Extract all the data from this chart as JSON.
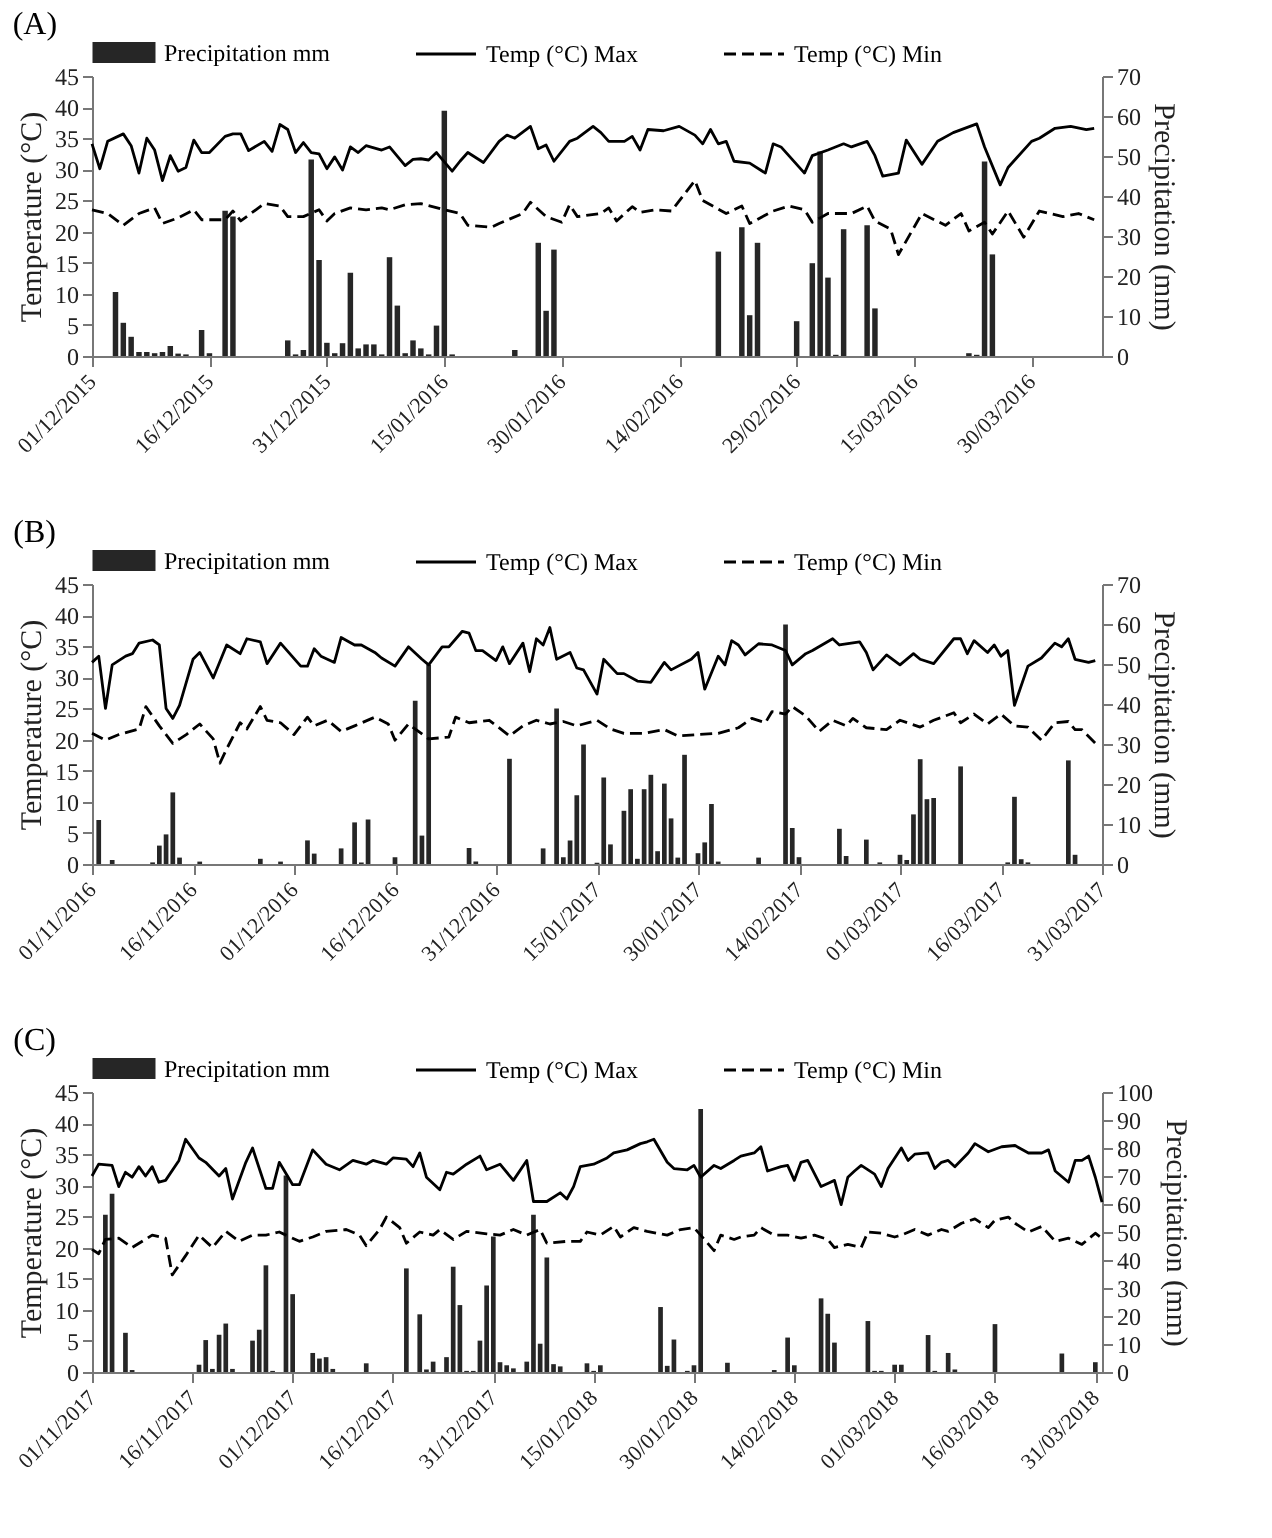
{
  "chart_data": [
    {
      "type": "bar",
      "title": "(A)",
      "ylabel": "Temperature (°C)",
      "y2label": "Precipitation (mm)",
      "legend": "top",
      "xlim": [
        "2015-12-01",
        "2016-04-08"
      ],
      "xticks": [
        {
          "value": "2015-12-01",
          "label": "01/12/2015"
        },
        {
          "value": "2015-12-16",
          "label": "16/12/2015"
        },
        {
          "value": "2015-12-31",
          "label": "31/12/2015"
        },
        {
          "value": "2016-01-15",
          "label": "15/01/2016"
        },
        {
          "value": "2016-01-30",
          "label": "30/01/2016"
        },
        {
          "value": "2016-02-14",
          "label": "14/02/2016"
        },
        {
          "value": "2016-02-29",
          "label": "29/02/2016"
        },
        {
          "value": "2016-03-15",
          "label": "15/03/2016"
        },
        {
          "value": "2016-03-30",
          "label": "30/03/2016"
        }
      ],
      "ylim": [
        0,
        45
      ],
      "yticks": [
        0,
        5,
        10,
        15,
        20,
        25,
        30,
        35,
        40,
        45
      ],
      "y2lim": [
        0,
        70
      ],
      "y2ticks": [
        0,
        10,
        20,
        30,
        40,
        50,
        60,
        70
      ],
      "series": [
        {
          "name": "Precipitation mm",
          "axis": "y2",
          "color": "#262626",
          "x": [
            "2015-12-04",
            "2015-12-05",
            "2015-12-06",
            "2015-12-07",
            "2015-12-08",
            "2015-12-09",
            "2015-12-10",
            "2015-12-11",
            "2015-12-12",
            "2015-12-13",
            "2015-12-15",
            "2015-12-16",
            "2015-12-18",
            "2015-12-19",
            "2015-12-26",
            "2015-12-27",
            "2015-12-28",
            "2015-12-29",
            "2015-12-30",
            "2015-12-31",
            "2016-01-01",
            "2016-01-02",
            "2016-01-03",
            "2016-01-04",
            "2016-01-05",
            "2016-01-06",
            "2016-01-07",
            "2016-01-08",
            "2016-01-09",
            "2016-01-10",
            "2016-01-11",
            "2016-01-12",
            "2016-01-13",
            "2016-01-14",
            "2016-01-15",
            "2016-01-16",
            "2016-01-24",
            "2016-01-27",
            "2016-01-28",
            "2016-01-29",
            "2016-02-19",
            "2016-02-22",
            "2016-02-23",
            "2016-02-24",
            "2016-02-29",
            "2016-03-02",
            "2016-03-03",
            "2016-03-04",
            "2016-03-05",
            "2016-03-06",
            "2016-03-09",
            "2016-03-10",
            "2016-03-22",
            "2016-03-23",
            "2016-03-24",
            "2016-03-25"
          ],
          "values": [
            16.0,
            8.3,
            4.8,
            1.0,
            1.0,
            0.7,
            1.0,
            2.5,
            0.6,
            0.4,
            6.5,
            0.7,
            36.3,
            34.9,
            3.9,
            0.4,
            1.5,
            49.1,
            24.0,
            3.3,
            0.7,
            3.2,
            20.8,
            1.9,
            2.9,
            2.9,
            0.4,
            24.7,
            12.6,
            0.7,
            3.9,
            1.9,
            0.4,
            7.6,
            61.3,
            0.4,
            1.5,
            28.3,
            11.3,
            26.6,
            26.1,
            32.2,
            10.2,
            28.3,
            8.7,
            23.2,
            51.1,
            19.6,
            0.3,
            31.7,
            32.7,
            11.9,
            0.7,
            0.3,
            48.6,
            25.4
          ]
        },
        {
          "name": "Temp (°C) Max",
          "type": "line",
          "line_style": "solid",
          "color": "#000000",
          "x": [
            "2015-12-01",
            "2015-12-02",
            "2015-12-03",
            "2015-12-05",
            "2015-12-06",
            "2015-12-07",
            "2015-12-08",
            "2015-12-09",
            "2015-12-10",
            "2015-12-11",
            "2015-12-12",
            "2015-12-13",
            "2015-12-14",
            "2015-12-15",
            "2015-12-16",
            "2015-12-18",
            "2015-12-19",
            "2015-12-20",
            "2015-12-21",
            "2015-12-23",
            "2015-12-24",
            "2015-12-25",
            "2015-12-26",
            "2015-12-27",
            "2015-12-28",
            "2015-12-29",
            "2015-12-30",
            "2015-12-31",
            "2016-01-01",
            "2016-01-02",
            "2016-01-03",
            "2016-01-04",
            "2016-01-05",
            "2016-01-07",
            "2016-01-08",
            "2016-01-10",
            "2016-01-11",
            "2016-01-12",
            "2016-01-13",
            "2016-01-14",
            "2016-01-16",
            "2016-01-17",
            "2016-01-18",
            "2016-01-20",
            "2016-01-22",
            "2016-01-23",
            "2016-01-24",
            "2016-01-26",
            "2016-01-27",
            "2016-01-28",
            "2016-01-29",
            "2016-01-31",
            "2016-02-01",
            "2016-02-03",
            "2016-02-04",
            "2016-02-05",
            "2016-02-07",
            "2016-02-08",
            "2016-02-09",
            "2016-02-10",
            "2016-02-12",
            "2016-02-14",
            "2016-02-16",
            "2016-02-17",
            "2016-02-18",
            "2016-02-19",
            "2016-02-20",
            "2016-02-21",
            "2016-02-23",
            "2016-02-25",
            "2016-02-26",
            "2016-02-27",
            "2016-03-01",
            "2016-03-02",
            "2016-03-04",
            "2016-03-06",
            "2016-03-07",
            "2016-03-09",
            "2016-03-10",
            "2016-03-11",
            "2016-03-13",
            "2016-03-14",
            "2016-03-16",
            "2016-03-18",
            "2016-03-20",
            "2016-03-23",
            "2016-03-24",
            "2016-03-26",
            "2016-03-27",
            "2016-03-30",
            "2016-03-31",
            "2016-04-02",
            "2016-04-04",
            "2016-04-06",
            "2016-04-07"
          ],
          "values": [
            34.1,
            30.1,
            34.5,
            35.7,
            33.8,
            29.4,
            35.0,
            33.1,
            28.2,
            32.2,
            29.7,
            30.3,
            34.7,
            32.7,
            32.7,
            35.3,
            35.7,
            35.7,
            33.0,
            34.5,
            32.9,
            37.2,
            36.4,
            32.7,
            34.3,
            32.7,
            32.5,
            30.1,
            32.0,
            29.9,
            33.6,
            32.7,
            33.8,
            33.1,
            33.6,
            30.6,
            31.6,
            31.7,
            31.5,
            32.7,
            29.7,
            31.3,
            32.7,
            31.1,
            34.5,
            35.5,
            35.0,
            36.9,
            33.3,
            33.9,
            31.3,
            34.5,
            35.0,
            36.9,
            35.9,
            34.5,
            34.5,
            35.3,
            33.1,
            36.4,
            36.2,
            36.9,
            35.5,
            34.1,
            36.4,
            34.1,
            34.5,
            31.3,
            31.0,
            29.4,
            34.1,
            33.6,
            29.4,
            32.2,
            33.1,
            34.1,
            33.6,
            34.5,
            32.2,
            28.9,
            29.4,
            34.7,
            30.8,
            34.5,
            35.9,
            37.3,
            33.6,
            27.5,
            30.3,
            34.5,
            35.0,
            36.6,
            36.9,
            36.4,
            36.6
          ]
        },
        {
          "name": "Temp (°C) Min",
          "type": "line",
          "line_style": "dashed",
          "color": "#000000",
          "x": [
            "2015-12-01",
            "2015-12-03",
            "2015-12-05",
            "2015-12-07",
            "2015-12-09",
            "2015-12-10",
            "2015-12-12",
            "2015-12-14",
            "2015-12-15",
            "2015-12-18",
            "2015-12-19",
            "2015-12-20",
            "2015-12-23",
            "2015-12-25",
            "2015-12-26",
            "2015-12-28",
            "2015-12-30",
            "2015-12-31",
            "2016-01-01",
            "2016-01-03",
            "2016-01-05",
            "2016-01-07",
            "2016-01-08",
            "2016-01-10",
            "2016-01-12",
            "2016-01-15",
            "2016-01-17",
            "2016-01-18",
            "2016-01-21",
            "2016-01-22",
            "2016-01-25",
            "2016-01-26",
            "2016-01-28",
            "2016-01-30",
            "2016-01-31",
            "2016-02-01",
            "2016-02-04",
            "2016-02-05",
            "2016-02-06",
            "2016-02-08",
            "2016-02-09",
            "2016-02-11",
            "2016-02-13",
            "2016-02-16",
            "2016-02-17",
            "2016-02-20",
            "2016-02-22",
            "2016-02-23",
            "2016-02-26",
            "2016-02-28",
            "2016-03-01",
            "2016-03-02",
            "2016-03-04",
            "2016-03-07",
            "2016-03-09",
            "2016-03-10",
            "2016-03-12",
            "2016-03-13",
            "2016-03-16",
            "2016-03-19",
            "2016-03-21",
            "2016-03-22",
            "2016-03-24",
            "2016-03-25",
            "2016-03-27",
            "2016-03-29",
            "2016-03-31",
            "2016-04-03",
            "2016-04-05",
            "2016-04-07"
          ],
          "values": [
            23.5,
            22.9,
            21.0,
            22.9,
            23.8,
            21.3,
            22.2,
            23.5,
            21.9,
            21.9,
            23.3,
            21.7,
            24.5,
            24.1,
            22.4,
            22.4,
            23.5,
            21.7,
            22.9,
            23.8,
            23.5,
            23.8,
            23.5,
            24.3,
            24.5,
            23.5,
            22.9,
            21.0,
            20.7,
            21.3,
            22.9,
            24.7,
            22.4,
            21.5,
            24.3,
            22.4,
            22.9,
            23.8,
            21.7,
            24.0,
            23.1,
            23.5,
            23.3,
            28.2,
            25.0,
            22.9,
            24.1,
            21.3,
            23.3,
            24.1,
            23.5,
            21.5,
            22.9,
            22.9,
            24.1,
            21.7,
            20.4,
            16.3,
            22.9,
            21.0,
            22.9,
            20.1,
            21.5,
            19.6,
            23.3,
            19.1,
            23.3,
            22.4,
            22.9,
            21.9
          ]
        }
      ]
    },
    {
      "type": "bar",
      "title": "(B)",
      "ylabel": "Temperature (°C)",
      "y2label": "Precipitation (mm)",
      "legend": "top",
      "xlim": [
        "2016-11-01",
        "2017-03-31"
      ],
      "xticks": [
        {
          "value": "2016-11-01",
          "label": "01/11/2016"
        },
        {
          "value": "2016-11-16",
          "label": "16/11/2016"
        },
        {
          "value": "2016-12-01",
          "label": "01/12/2016"
        },
        {
          "value": "2016-12-16",
          "label": "16/12/2016"
        },
        {
          "value": "2016-12-31",
          "label": "31/12/2016"
        },
        {
          "value": "2017-01-15",
          "label": "15/01/2017"
        },
        {
          "value": "2017-01-30",
          "label": "30/01/2017"
        },
        {
          "value": "2017-02-14",
          "label": "14/02/2017"
        },
        {
          "value": "2017-03-01",
          "label": "01/03/2017"
        },
        {
          "value": "2017-03-16",
          "label": "16/03/2017"
        },
        {
          "value": "2017-03-31",
          "label": "31/03/2017"
        }
      ],
      "ylim": [
        0,
        45
      ],
      "yticks": [
        0,
        5,
        10,
        15,
        20,
        25,
        30,
        35,
        40,
        45
      ],
      "y2lim": [
        0,
        70
      ],
      "y2ticks": [
        0,
        10,
        20,
        30,
        40,
        50,
        60,
        70
      ],
      "series": [
        {
          "name": "Precipitation mm",
          "axis": "y2",
          "color": "#262626",
          "x": [
            "2016-11-02",
            "2016-11-04",
            "2016-11-10",
            "2016-11-11",
            "2016-11-12",
            "2016-11-13",
            "2016-11-14",
            "2016-11-17",
            "2016-11-26",
            "2016-11-29",
            "2016-12-03",
            "2016-12-04",
            "2016-12-08",
            "2016-12-10",
            "2016-12-11",
            "2016-12-12",
            "2016-12-16",
            "2016-12-19",
            "2016-12-20",
            "2016-12-21",
            "2016-12-27",
            "2016-12-28",
            "2017-01-02",
            "2017-01-07",
            "2017-01-09",
            "2017-01-10",
            "2017-01-11",
            "2017-01-12",
            "2017-01-13",
            "2017-01-15",
            "2017-01-16",
            "2017-01-17",
            "2017-01-19",
            "2017-01-20",
            "2017-01-21",
            "2017-01-22",
            "2017-01-23",
            "2017-01-24",
            "2017-01-25",
            "2017-01-26",
            "2017-01-27",
            "2017-01-28",
            "2017-01-30",
            "2017-01-31",
            "2017-02-01",
            "2017-02-02",
            "2017-02-08",
            "2017-02-12",
            "2017-02-13",
            "2017-02-14",
            "2017-02-20",
            "2017-02-21",
            "2017-02-24",
            "2017-02-26",
            "2017-03-01",
            "2017-03-02",
            "2017-03-03",
            "2017-03-04",
            "2017-03-05",
            "2017-03-06",
            "2017-03-10",
            "2017-03-17",
            "2017-03-18",
            "2017-03-19",
            "2017-03-20",
            "2017-03-26",
            "2017-03-27"
          ],
          "values": [
            11.0,
            1.0,
            0.4,
            4.6,
            7.4,
            17.9,
            1.6,
            0.6,
            1.3,
            0.6,
            5.9,
            2.6,
            3.9,
            10.4,
            0.4,
            11.1,
            1.7,
            40.8,
            7.1,
            49.8,
            4.0,
            0.6,
            26.3,
            3.9,
            38.9,
            1.7,
            5.9,
            17.2,
            29.9,
            0.3,
            21.6,
            4.9,
            13.3,
            18.7,
            1.3,
            18.7,
            22.3,
            3.2,
            20.1,
            11.4,
            1.6,
            27.3,
            2.7,
            5.4,
            15.0,
            0.6,
            1.6,
            59.9,
            9.0,
            1.7,
            8.8,
            2.0,
            6.1,
            0.4,
            2.3,
            1.0,
            12.4,
            26.2,
            16.2,
            16.5,
            24.4,
            0.4,
            16.8,
            1.2,
            0.4,
            25.9,
            2.3
          ]
        },
        {
          "name": "Temp (°C) Max",
          "type": "line",
          "line_style": "solid",
          "color": "#000000",
          "x": [
            "2016-11-01",
            "2016-11-02",
            "2016-11-03",
            "2016-11-04",
            "2016-11-06",
            "2016-11-07",
            "2016-11-08",
            "2016-11-10",
            "2016-11-11",
            "2016-11-12",
            "2016-11-13",
            "2016-11-14",
            "2016-11-16",
            "2016-11-17",
            "2016-11-19",
            "2016-11-21",
            "2016-11-23",
            "2016-11-24",
            "2016-11-26",
            "2016-11-27",
            "2016-11-29",
            "2016-12-02",
            "2016-12-03",
            "2016-12-04",
            "2016-12-05",
            "2016-12-07",
            "2016-12-08",
            "2016-12-10",
            "2016-12-11",
            "2016-12-13",
            "2016-12-14",
            "2016-12-16",
            "2016-12-18",
            "2016-12-20",
            "2016-12-21",
            "2016-12-23",
            "2016-12-24",
            "2016-12-26",
            "2016-12-27",
            "2016-12-28",
            "2016-12-29",
            "2016-12-31",
            "2017-01-01",
            "2017-01-02",
            "2017-01-04",
            "2017-01-05",
            "2017-01-06",
            "2017-01-07",
            "2017-01-08",
            "2017-01-09",
            "2017-01-11",
            "2017-01-12",
            "2017-01-13",
            "2017-01-15",
            "2017-01-16",
            "2017-01-18",
            "2017-01-19",
            "2017-01-21",
            "2017-01-23",
            "2017-01-25",
            "2017-01-26",
            "2017-01-29",
            "2017-01-30",
            "2017-01-31",
            "2017-02-02",
            "2017-02-03",
            "2017-02-04",
            "2017-02-05",
            "2017-02-06",
            "2017-02-08",
            "2017-02-10",
            "2017-02-12",
            "2017-02-13",
            "2017-02-15",
            "2017-02-16",
            "2017-02-19",
            "2017-02-20",
            "2017-02-23",
            "2017-02-24",
            "2017-02-25",
            "2017-02-27",
            "2017-03-01",
            "2017-03-03",
            "2017-03-04",
            "2017-03-06",
            "2017-03-09",
            "2017-03-10",
            "2017-03-11",
            "2017-03-12",
            "2017-03-14",
            "2017-03-15",
            "2017-03-16",
            "2017-03-17",
            "2017-03-18",
            "2017-03-20",
            "2017-03-22",
            "2017-03-24",
            "2017-03-25",
            "2017-03-26",
            "2017-03-27",
            "2017-03-29",
            "2017-03-30"
          ],
          "values": [
            32.4,
            33.4,
            25.0,
            32.0,
            33.4,
            33.8,
            35.5,
            36.0,
            35.2,
            25.0,
            23.4,
            25.5,
            32.9,
            34.0,
            29.9,
            35.2,
            33.8,
            36.2,
            35.7,
            32.2,
            35.5,
            31.8,
            31.8,
            34.6,
            33.4,
            32.4,
            36.4,
            35.2,
            35.2,
            34.0,
            33.1,
            31.8,
            34.9,
            32.9,
            32.0,
            34.9,
            34.9,
            37.4,
            37.1,
            34.3,
            34.3,
            32.7,
            34.9,
            32.2,
            35.5,
            30.9,
            36.2,
            35.2,
            38.0,
            32.9,
            34.0,
            31.5,
            31.2,
            27.3,
            32.9,
            30.6,
            30.6,
            29.4,
            29.2,
            32.4,
            31.2,
            32.9,
            34.0,
            28.1,
            33.4,
            32.0,
            35.9,
            35.2,
            33.6,
            35.4,
            35.2,
            34.3,
            32.0,
            33.8,
            34.3,
            36.2,
            35.2,
            35.7,
            34.0,
            31.2,
            33.6,
            32.0,
            33.8,
            32.9,
            32.2,
            36.2,
            36.2,
            33.8,
            35.9,
            34.0,
            35.2,
            33.4,
            34.3,
            25.5,
            31.8,
            33.1,
            35.5,
            34.9,
            36.2,
            32.9,
            32.4,
            32.7
          ]
        },
        {
          "name": "Temp (°C) Min",
          "type": "line",
          "line_style": "dashed",
          "color": "#000000",
          "x": [
            "2016-11-01",
            "2016-11-03",
            "2016-11-05",
            "2016-11-08",
            "2016-11-09",
            "2016-11-11",
            "2016-11-13",
            "2016-11-15",
            "2016-11-17",
            "2016-11-19",
            "2016-11-20",
            "2016-11-21",
            "2016-11-23",
            "2016-11-24",
            "2016-11-26",
            "2016-11-27",
            "2016-11-29",
            "2016-12-01",
            "2016-12-03",
            "2016-12-04",
            "2016-12-06",
            "2016-12-08",
            "2016-12-10",
            "2016-12-13",
            "2016-12-15",
            "2016-12-16",
            "2016-12-18",
            "2016-12-21",
            "2016-12-24",
            "2016-12-25",
            "2016-12-27",
            "2016-12-30",
            "2017-01-02",
            "2017-01-04",
            "2017-01-06",
            "2017-01-08",
            "2017-01-10",
            "2017-01-12",
            "2017-01-15",
            "2017-01-17",
            "2017-01-19",
            "2017-01-22",
            "2017-01-25",
            "2017-01-27",
            "2017-01-30",
            "2017-02-02",
            "2017-02-05",
            "2017-02-07",
            "2017-02-09",
            "2017-02-10",
            "2017-02-12",
            "2017-02-13",
            "2017-02-15",
            "2017-02-17",
            "2017-02-19",
            "2017-02-21",
            "2017-02-22",
            "2017-02-24",
            "2017-02-27",
            "2017-03-01",
            "2017-03-04",
            "2017-03-06",
            "2017-03-09",
            "2017-03-10",
            "2017-03-12",
            "2017-03-14",
            "2017-03-16",
            "2017-03-18",
            "2017-03-20",
            "2017-03-22",
            "2017-03-24",
            "2017-03-26",
            "2017-03-27",
            "2017-03-28",
            "2017-03-30"
          ],
          "values": [
            21.0,
            19.9,
            20.8,
            21.7,
            25.3,
            22.2,
            19.4,
            20.8,
            22.5,
            20.1,
            16.2,
            18.5,
            22.7,
            21.7,
            25.3,
            23.1,
            22.7,
            20.8,
            23.6,
            22.2,
            23.1,
            21.3,
            22.2,
            23.6,
            22.5,
            19.9,
            22.5,
            20.1,
            20.4,
            23.6,
            22.7,
            23.1,
            20.6,
            22.2,
            23.1,
            22.5,
            22.9,
            22.2,
            23.1,
            21.7,
            21.0,
            21.0,
            21.6,
            20.6,
            20.8,
            21.0,
            21.9,
            23.4,
            22.7,
            24.5,
            24.1,
            25.3,
            23.8,
            21.3,
            23.1,
            22.2,
            23.4,
            21.9,
            21.6,
            23.1,
            22.0,
            23.1,
            24.3,
            22.7,
            24.1,
            22.5,
            24.1,
            22.2,
            22.0,
            19.9,
            22.7,
            22.9,
            21.6,
            21.6,
            19.4
          ]
        }
      ]
    },
    {
      "type": "bar",
      "title": "(C)",
      "ylabel": "Temperature (°C)",
      "y2label": "Precipitation (mm)",
      "legend": "top",
      "xlim": [
        "2017-11-01",
        "2018-04-01"
      ],
      "xticks": [
        {
          "value": "2017-11-01",
          "label": "01/11/2017"
        },
        {
          "value": "2017-11-16",
          "label": "16/11/2017"
        },
        {
          "value": "2017-12-01",
          "label": "01/12/2017"
        },
        {
          "value": "2017-12-16",
          "label": "16/12/2017"
        },
        {
          "value": "2017-12-31",
          "label": "31/12/2017"
        },
        {
          "value": "2018-01-15",
          "label": "15/01/2018"
        },
        {
          "value": "2018-01-30",
          "label": "30/01/2018"
        },
        {
          "value": "2018-02-14",
          "label": "14/02/2018"
        },
        {
          "value": "2018-03-01",
          "label": "01/03/2018"
        },
        {
          "value": "2018-03-16",
          "label": "16/03/2018"
        },
        {
          "value": "2018-03-31",
          "label": "31/03/2018"
        }
      ],
      "ylim": [
        0,
        45
      ],
      "yticks": [
        0,
        5,
        10,
        15,
        20,
        25,
        30,
        35,
        40,
        45
      ],
      "y2lim": [
        0,
        100
      ],
      "y2ticks": [
        0,
        10,
        20,
        30,
        40,
        50,
        60,
        70,
        80,
        90,
        100
      ],
      "series": [
        {
          "name": "Precipitation mm",
          "axis": "y2",
          "color": "#262626",
          "x": [
            "2017-11-03",
            "2017-11-04",
            "2017-11-06",
            "2017-11-07",
            "2017-11-17",
            "2017-11-18",
            "2017-11-19",
            "2017-11-20",
            "2017-11-21",
            "2017-11-22",
            "2017-11-25",
            "2017-11-26",
            "2017-11-27",
            "2017-11-28",
            "2017-11-30",
            "2017-12-01",
            "2017-12-04",
            "2017-12-05",
            "2017-12-06",
            "2017-12-07",
            "2017-12-12",
            "2017-12-18",
            "2017-12-20",
            "2017-12-21",
            "2017-12-22",
            "2017-12-24",
            "2017-12-25",
            "2017-12-26",
            "2017-12-27",
            "2017-12-28",
            "2017-12-29",
            "2017-12-30",
            "2017-12-31",
            "2018-01-01",
            "2018-01-02",
            "2018-01-03",
            "2018-01-05",
            "2018-01-06",
            "2018-01-07",
            "2018-01-08",
            "2018-01-09",
            "2018-01-10",
            "2018-01-14",
            "2018-01-15",
            "2018-01-16",
            "2018-01-25",
            "2018-01-26",
            "2018-01-27",
            "2018-01-29",
            "2018-01-30",
            "2018-01-31",
            "2018-02-04",
            "2018-02-11",
            "2018-02-13",
            "2018-02-14",
            "2018-02-18",
            "2018-02-19",
            "2018-02-20",
            "2018-02-25",
            "2018-02-26",
            "2018-02-27",
            "2018-03-01",
            "2018-03-02",
            "2018-03-06",
            "2018-03-07",
            "2018-03-09",
            "2018-03-10",
            "2018-03-16",
            "2018-03-26",
            "2018-03-31"
          ],
          "values": [
            56.2,
            63.7,
            14.0,
            0.7,
            2.6,
            11.4,
            1.1,
            13.3,
            17.3,
            1.1,
            11.2,
            15.1,
            38.1,
            0.4,
            70.2,
            27.8,
            6.8,
            4.8,
            5.3,
            1.1,
            3.1,
            37.0,
            20.6,
            0.9,
            3.7,
            5.3,
            37.6,
            23.9,
            0.4,
            0.4,
            11.2,
            30.9,
            48.4,
            3.5,
            2.4,
            1.3,
            3.7,
            56.2,
            10.1,
            40.9,
            2.8,
            2.0,
            3.1,
            0.4,
            2.4,
            23.2,
            2.2,
            11.6,
            0.4,
            2.4,
            93.9,
            3.3,
            0.7,
            12.3,
            2.4,
            26.3,
            20.8,
            10.5,
            18.2,
            0.4,
            0.4,
            2.6,
            2.6,
            13.2,
            0.4,
            6.8,
            0.9,
            17.1,
            6.6,
            3.5
          ]
        },
        {
          "name": "Temp (°C) Max",
          "type": "line",
          "line_style": "solid",
          "color": "#000000",
          "x": [
            "2017-11-01",
            "2017-11-02",
            "2017-11-04",
            "2017-11-05",
            "2017-11-06",
            "2017-11-07",
            "2017-11-08",
            "2017-11-09",
            "2017-11-10",
            "2017-11-11",
            "2017-11-12",
            "2017-11-14",
            "2017-11-15",
            "2017-11-17",
            "2017-11-18",
            "2017-11-20",
            "2017-11-21",
            "2017-11-22",
            "2017-11-24",
            "2017-11-25",
            "2017-11-27",
            "2017-11-28",
            "2017-11-29",
            "2017-12-01",
            "2017-12-02",
            "2017-12-04",
            "2017-12-06",
            "2017-12-08",
            "2017-12-10",
            "2017-12-12",
            "2017-12-13",
            "2017-12-15",
            "2017-12-16",
            "2017-12-18",
            "2017-12-19",
            "2017-12-20",
            "2017-12-21",
            "2017-12-23",
            "2017-12-24",
            "2017-12-25",
            "2017-12-27",
            "2017-12-29",
            "2017-12-30",
            "2018-01-01",
            "2018-01-03",
            "2018-01-05",
            "2018-01-06",
            "2018-01-08",
            "2018-01-10",
            "2018-01-11",
            "2018-01-12",
            "2018-01-13",
            "2018-01-15",
            "2018-01-17",
            "2018-01-18",
            "2018-01-20",
            "2018-01-22",
            "2018-01-23",
            "2018-01-24",
            "2018-01-26",
            "2018-01-27",
            "2018-01-29",
            "2018-01-30",
            "2018-01-31",
            "2018-02-02",
            "2018-02-03",
            "2018-02-05",
            "2018-02-06",
            "2018-02-08",
            "2018-02-09",
            "2018-02-10",
            "2018-02-12",
            "2018-02-13",
            "2018-02-14",
            "2018-02-15",
            "2018-02-16",
            "2018-02-18",
            "2018-02-19",
            "2018-02-20",
            "2018-02-21",
            "2018-02-22",
            "2018-02-23",
            "2018-02-24",
            "2018-02-26",
            "2018-02-27",
            "2018-02-28",
            "2018-03-02",
            "2018-03-03",
            "2018-03-04",
            "2018-03-06",
            "2018-03-07",
            "2018-03-08",
            "2018-03-09",
            "2018-03-10",
            "2018-03-12",
            "2018-03-13",
            "2018-03-15",
            "2018-03-17",
            "2018-03-19",
            "2018-03-21",
            "2018-03-23",
            "2018-03-24",
            "2018-03-25",
            "2018-03-27",
            "2018-03-28",
            "2018-03-29",
            "2018-03-30",
            "2018-03-31",
            "2018-04-01"
          ],
          "values": [
            31.5,
            33.4,
            33.2,
            29.8,
            32.1,
            31.3,
            33.0,
            31.5,
            33.0,
            30.5,
            30.8,
            34.0,
            37.4,
            34.4,
            33.7,
            31.5,
            32.7,
            27.8,
            33.7,
            36.0,
            29.5,
            29.5,
            33.7,
            30.1,
            30.1,
            35.7,
            33.4,
            32.5,
            34.0,
            33.4,
            34.0,
            33.4,
            34.4,
            34.2,
            33.0,
            35.2,
            31.3,
            29.3,
            32.1,
            31.8,
            33.4,
            34.7,
            32.5,
            33.4,
            30.8,
            34.0,
            27.4,
            27.4,
            28.8,
            27.8,
            29.8,
            33.0,
            33.4,
            34.4,
            35.2,
            35.7,
            36.7,
            37.0,
            37.4,
            33.7,
            32.7,
            32.5,
            33.2,
            31.3,
            33.2,
            32.7,
            34.0,
            34.7,
            35.2,
            36.2,
            32.3,
            33.0,
            33.2,
            30.8,
            33.7,
            34.0,
            29.8,
            30.3,
            30.8,
            26.9,
            31.3,
            32.3,
            33.2,
            31.8,
            29.8,
            32.7,
            36.0,
            34.0,
            35.0,
            35.2,
            32.7,
            33.7,
            34.0,
            33.0,
            35.2,
            36.7,
            35.4,
            36.2,
            36.4,
            35.2,
            35.2,
            35.7,
            32.3,
            30.5,
            34.0,
            34.0,
            34.7,
            31.3,
            27.3
          ]
        },
        {
          "name": "Temp (°C) Min",
          "type": "line",
          "line_style": "dashed",
          "color": "#000000",
          "x": [
            "2017-11-01",
            "2017-11-02",
            "2017-11-03",
            "2017-11-05",
            "2017-11-07",
            "2017-11-10",
            "2017-11-12",
            "2017-11-13",
            "2017-11-15",
            "2017-11-17",
            "2017-11-19",
            "2017-11-21",
            "2017-11-23",
            "2017-11-25",
            "2017-11-27",
            "2017-11-29",
            "2017-12-02",
            "2017-12-04",
            "2017-12-06",
            "2017-12-09",
            "2017-12-11",
            "2017-12-12",
            "2017-12-14",
            "2017-12-15",
            "2017-12-17",
            "2017-12-18",
            "2017-12-20",
            "2017-12-22",
            "2017-12-23",
            "2017-12-25",
            "2017-12-27",
            "2017-12-30",
            "2018-01-01",
            "2018-01-03",
            "2018-01-05",
            "2018-01-07",
            "2018-01-08",
            "2018-01-11",
            "2018-01-13",
            "2018-01-14",
            "2018-01-16",
            "2018-01-18",
            "2018-01-19",
            "2018-01-21",
            "2018-01-23",
            "2018-01-26",
            "2018-01-28",
            "2018-01-30",
            "2018-01-31",
            "2018-02-02",
            "2018-02-03",
            "2018-02-05",
            "2018-02-06",
            "2018-02-08",
            "2018-02-09",
            "2018-02-11",
            "2018-02-13",
            "2018-02-15",
            "2018-02-17",
            "2018-02-19",
            "2018-02-20",
            "2018-02-22",
            "2018-02-24",
            "2018-02-25",
            "2018-02-27",
            "2018-03-01",
            "2018-03-02",
            "2018-03-04",
            "2018-03-06",
            "2018-03-08",
            "2018-03-09",
            "2018-03-11",
            "2018-03-13",
            "2018-03-15",
            "2018-03-16",
            "2018-03-18",
            "2018-03-19",
            "2018-03-21",
            "2018-03-23",
            "2018-03-25",
            "2018-03-27",
            "2018-03-29",
            "2018-03-31",
            "2018-04-01"
          ],
          "values": [
            19.7,
            19.0,
            21.3,
            21.5,
            20.0,
            22.0,
            21.5,
            15.6,
            18.7,
            22.0,
            20.0,
            22.6,
            21.0,
            22.0,
            22.0,
            22.5,
            21.0,
            21.7,
            22.6,
            22.9,
            22.0,
            20.3,
            22.9,
            24.9,
            23.2,
            20.7,
            22.5,
            22.0,
            22.9,
            21.3,
            22.6,
            22.2,
            22.0,
            22.9,
            22.0,
            22.9,
            20.7,
            21.0,
            21.0,
            22.5,
            22.0,
            23.4,
            21.7,
            23.2,
            22.6,
            22.0,
            22.9,
            23.2,
            22.0,
            19.5,
            22.0,
            21.3,
            21.7,
            22.0,
            23.2,
            22.0,
            22.0,
            21.5,
            22.0,
            21.3,
            20.0,
            20.5,
            20.0,
            22.5,
            22.3,
            21.7,
            22.0,
            22.9,
            22.0,
            22.9,
            22.6,
            23.9,
            24.6,
            23.2,
            24.4,
            24.9,
            23.9,
            22.5,
            23.4,
            21.0,
            21.5,
            20.5,
            22.3,
            21.5
          ]
        }
      ]
    }
  ]
}
